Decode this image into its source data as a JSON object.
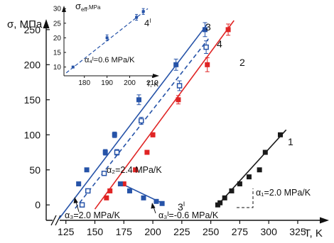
{
  "chart_data": {
    "type": "scatter",
    "title": "",
    "xlabel": "T, K",
    "ylabel": "σ, MPa",
    "xlim": [
      108,
      352
    ],
    "ylim": [
      -22,
      265
    ],
    "x_ticks": [
      125,
      150,
      175,
      200,
      225,
      250,
      275,
      300,
      325
    ],
    "y_ticks": [
      0,
      50,
      100,
      150,
      200,
      250
    ],
    "axis_break": true,
    "series": [
      {
        "name": "1",
        "color": "#1a1a1a",
        "marker": "filled-square",
        "points": [
          [
            256,
            0
          ],
          [
            258,
            3
          ],
          [
            262,
            10
          ],
          [
            268,
            20
          ],
          [
            275,
            30
          ],
          [
            283,
            40
          ],
          [
            292,
            50
          ],
          [
            297,
            75
          ],
          [
            310,
            100
          ]
        ],
        "fit": [
          [
            255,
            -2
          ],
          [
            315,
            107
          ]
        ]
      },
      {
        "name": "2",
        "color": "#e02424",
        "marker": "filled-square",
        "points": [
          [
            160,
            10
          ],
          [
            163,
            20
          ],
          [
            175,
            30
          ],
          [
            185,
            50
          ],
          [
            195,
            75
          ],
          [
            200,
            100
          ],
          [
            222,
            150
          ],
          [
            247,
            200
          ],
          [
            265,
            250
          ]
        ],
        "yerr": [
          0,
          0,
          0,
          0,
          3,
          3,
          6,
          10,
          8
        ],
        "fit": [
          [
            150,
            -6
          ],
          [
            270,
            263
          ]
        ]
      },
      {
        "name": "3",
        "color": "#2653a8",
        "marker": "filled-square",
        "points": [
          [
            136,
            30
          ],
          [
            143,
            50
          ],
          [
            159,
            75
          ],
          [
            167,
            100
          ],
          [
            188,
            150
          ],
          [
            220,
            200
          ],
          [
            245,
            250
          ]
        ],
        "yerr": [
          0,
          0,
          4,
          4,
          7,
          8,
          10
        ],
        "fit": [
          [
            119,
            -20
          ],
          [
            247,
            258
          ]
        ]
      },
      {
        "name": "4",
        "color": "#2653a8",
        "marker": "open-square",
        "line": "dashed",
        "points": [
          [
            139,
            0
          ],
          [
            144,
            20
          ],
          [
            158,
            45
          ],
          [
            169,
            75
          ],
          [
            190,
            120
          ],
          [
            223,
            170
          ],
          [
            246,
            225
          ]
        ],
        "yerr": [
          0,
          0,
          0,
          4,
          5,
          7,
          9
        ],
        "fit": [
          [
            133,
            -5
          ],
          [
            248,
            237
          ]
        ]
      },
      {
        "name": "3'",
        "color": "#2653a8",
        "marker": "filled-square",
        "points": [
          [
            172,
            30
          ],
          [
            180,
            20
          ],
          [
            192,
            10
          ],
          [
            203,
            5
          ],
          [
            208,
            2
          ]
        ],
        "fit": [
          [
            172,
            31
          ],
          [
            210,
            1
          ]
        ]
      }
    ],
    "annotations": [
      {
        "series": "1",
        "text": "α₁=2.0 MPa/K"
      },
      {
        "series": "2",
        "text": "α₂=2.4 MPa/K"
      },
      {
        "series": "3",
        "text": "α₃=2.0 MPa/K"
      },
      {
        "series": "3'",
        "text": "α₃ᴵ=-0.6 MPa/K"
      }
    ],
    "inset": {
      "series_name": "4ᴵ",
      "xlabel": "T, K",
      "ylabel": "σeff, MPa",
      "xlim": [
        171,
        213
      ],
      "ylim": [
        7,
        31
      ],
      "x_ticks": [
        180,
        190,
        200,
        210
      ],
      "y_ticks": [
        10,
        15,
        20,
        25,
        30
      ],
      "points": [
        [
          175,
          10
        ],
        [
          190,
          20
        ],
        [
          203,
          27
        ],
        [
          206,
          29
        ]
      ],
      "yerr": [
        0,
        1,
        1,
        1
      ],
      "fit": [
        [
          172,
          8
        ],
        [
          208,
          30
        ]
      ],
      "annotation": "α₄ᴵ=0.6 MPa/K"
    }
  },
  "labels": {
    "y_axis_label": "σ, МПа",
    "x_axis_label": "T, K",
    "series1": "1",
    "series2": "2",
    "series3": "3",
    "series4": "4",
    "series3p": "3",
    "series3p_mark": "I",
    "slope1": "α₁=2.0 MPa/K",
    "slope2": "α₂=2.4 MPa/K",
    "slope3": "α₃=2.0 MPa/K",
    "slope3p": "α₃ᴵ=-0.6 MPa/K",
    "inset_ylabel_main": "σ",
    "inset_ylabel_sub": "eff",
    "inset_ylabel_unit": ",MPa",
    "inset_xlabel": "T, K",
    "inset_series": "4",
    "inset_series_mark": "I",
    "inset_slope": "α₄ᴵ=0.6 MPa/K"
  }
}
